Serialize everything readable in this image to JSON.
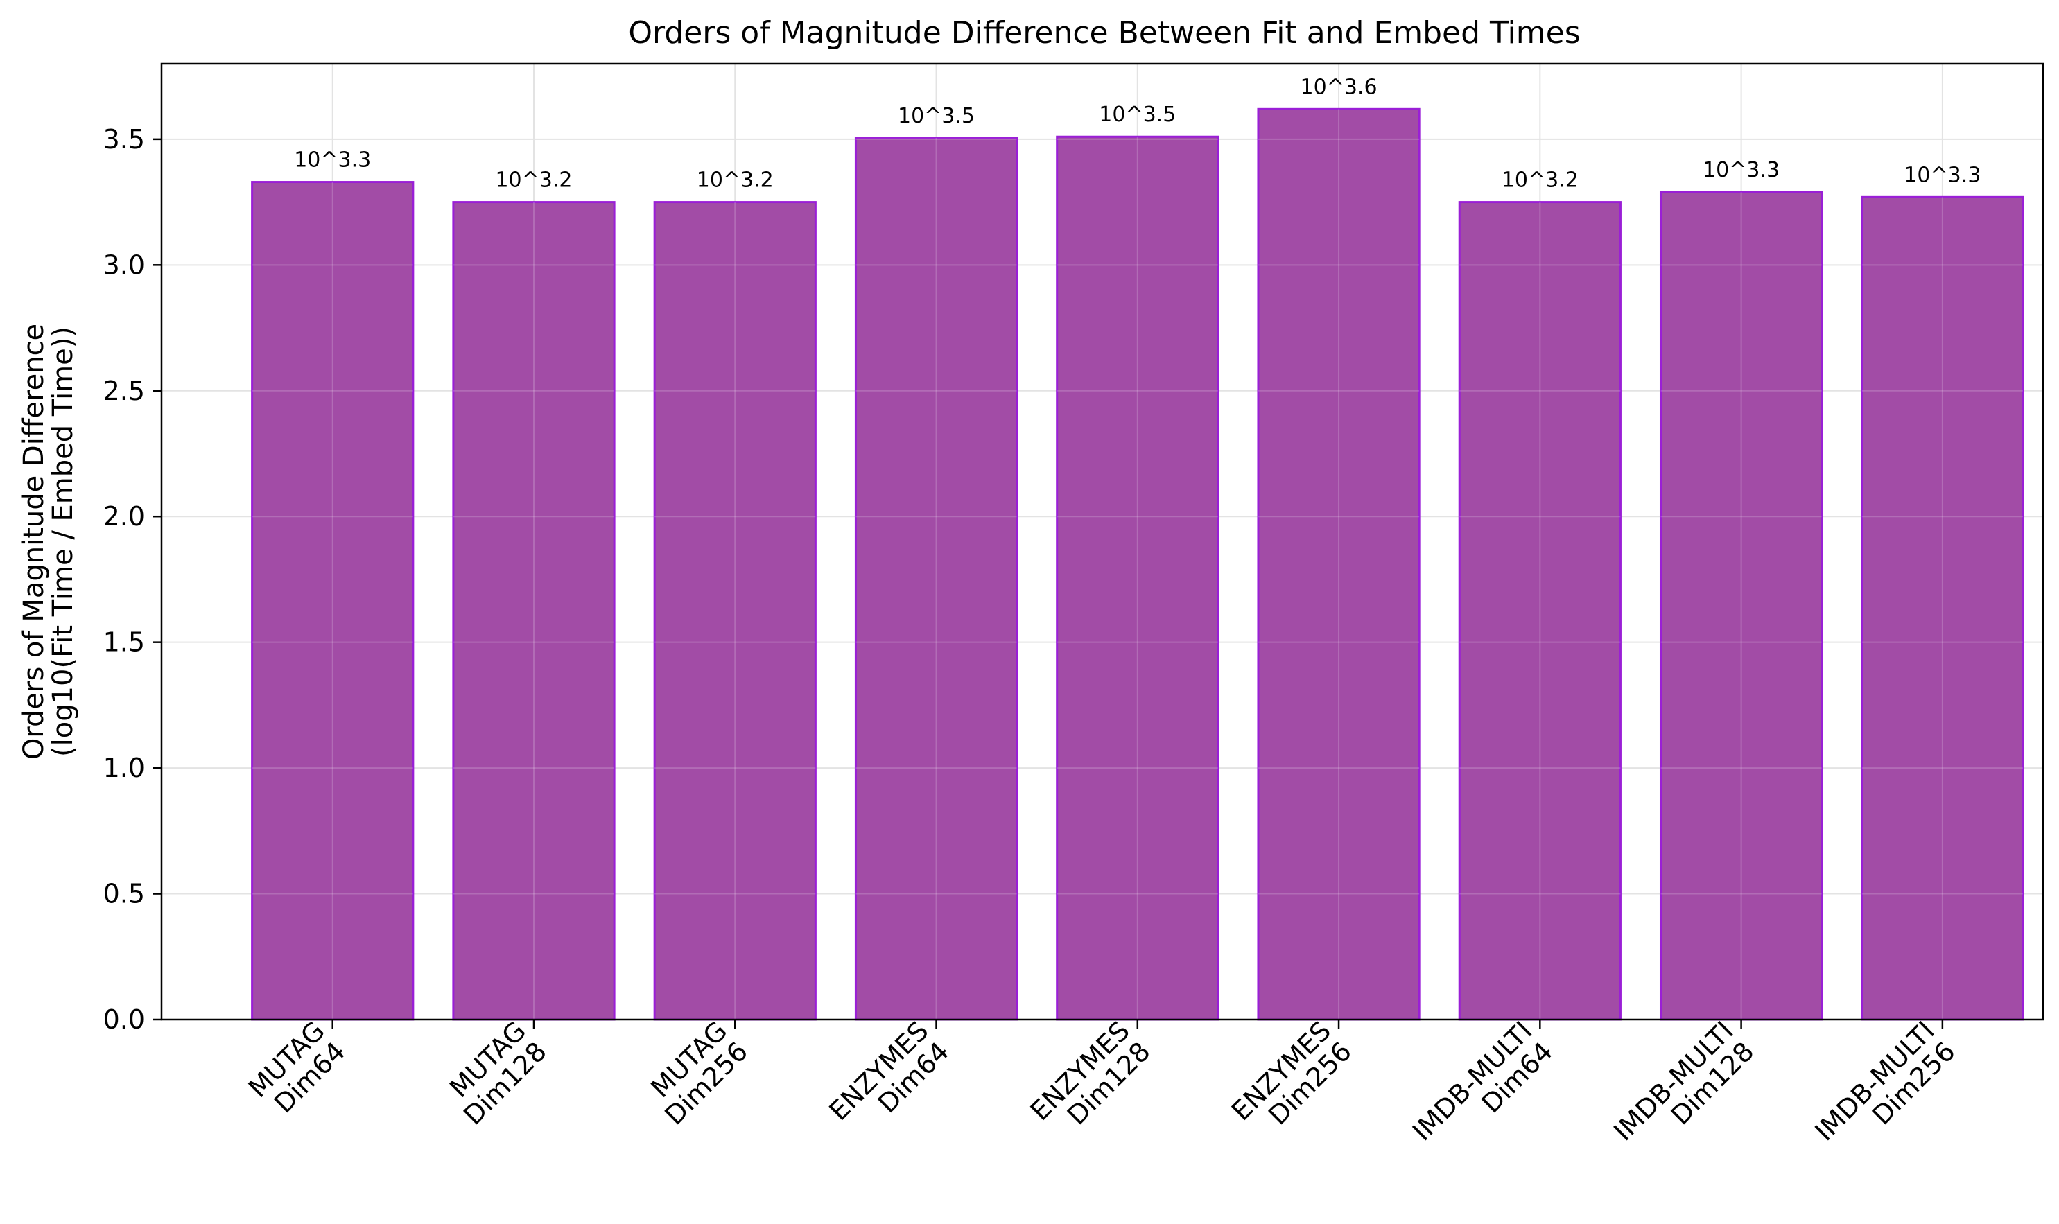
{
  "chart_data": {
    "type": "bar",
    "title": "Orders of Magnitude Difference Between Fit and Embed Times",
    "xlabel": "",
    "ylabel_lines": [
      "Orders of Magnitude Difference",
      "(log10(Fit Time / Embed Time))"
    ],
    "categories": [
      [
        "MUTAG",
        "Dim64"
      ],
      [
        "MUTAG",
        "Dim128"
      ],
      [
        "MUTAG",
        "Dim256"
      ],
      [
        "ENZYMES",
        "Dim64"
      ],
      [
        "ENZYMES",
        "Dim128"
      ],
      [
        "ENZYMES",
        "Dim256"
      ],
      [
        "IMDB-MULTI",
        "Dim64"
      ],
      [
        "IMDB-MULTI",
        "Dim128"
      ],
      [
        "IMDB-MULTI",
        "Dim256"
      ]
    ],
    "values": [
      3.33,
      3.25,
      3.25,
      3.505,
      3.51,
      3.62,
      3.25,
      3.29,
      3.27
    ],
    "data_labels": [
      "10^3.3",
      "10^3.2",
      "10^3.2",
      "10^3.5",
      "10^3.5",
      "10^3.6",
      "10^3.2",
      "10^3.3",
      "10^3.3"
    ],
    "ylim": [
      0,
      3.8
    ],
    "yticks": [
      0.0,
      0.5,
      1.0,
      1.5,
      2.0,
      2.5,
      3.0,
      3.5
    ],
    "ytick_labels": [
      "0.0",
      "0.5",
      "1.0",
      "1.5",
      "2.0",
      "2.5",
      "3.0",
      "3.5"
    ],
    "grid": true,
    "colors": {
      "bar_fill": "#a24ca6",
      "bar_edge": "#9a1fd6",
      "grid": "#e3e3e3",
      "axis": "#000000"
    }
  }
}
